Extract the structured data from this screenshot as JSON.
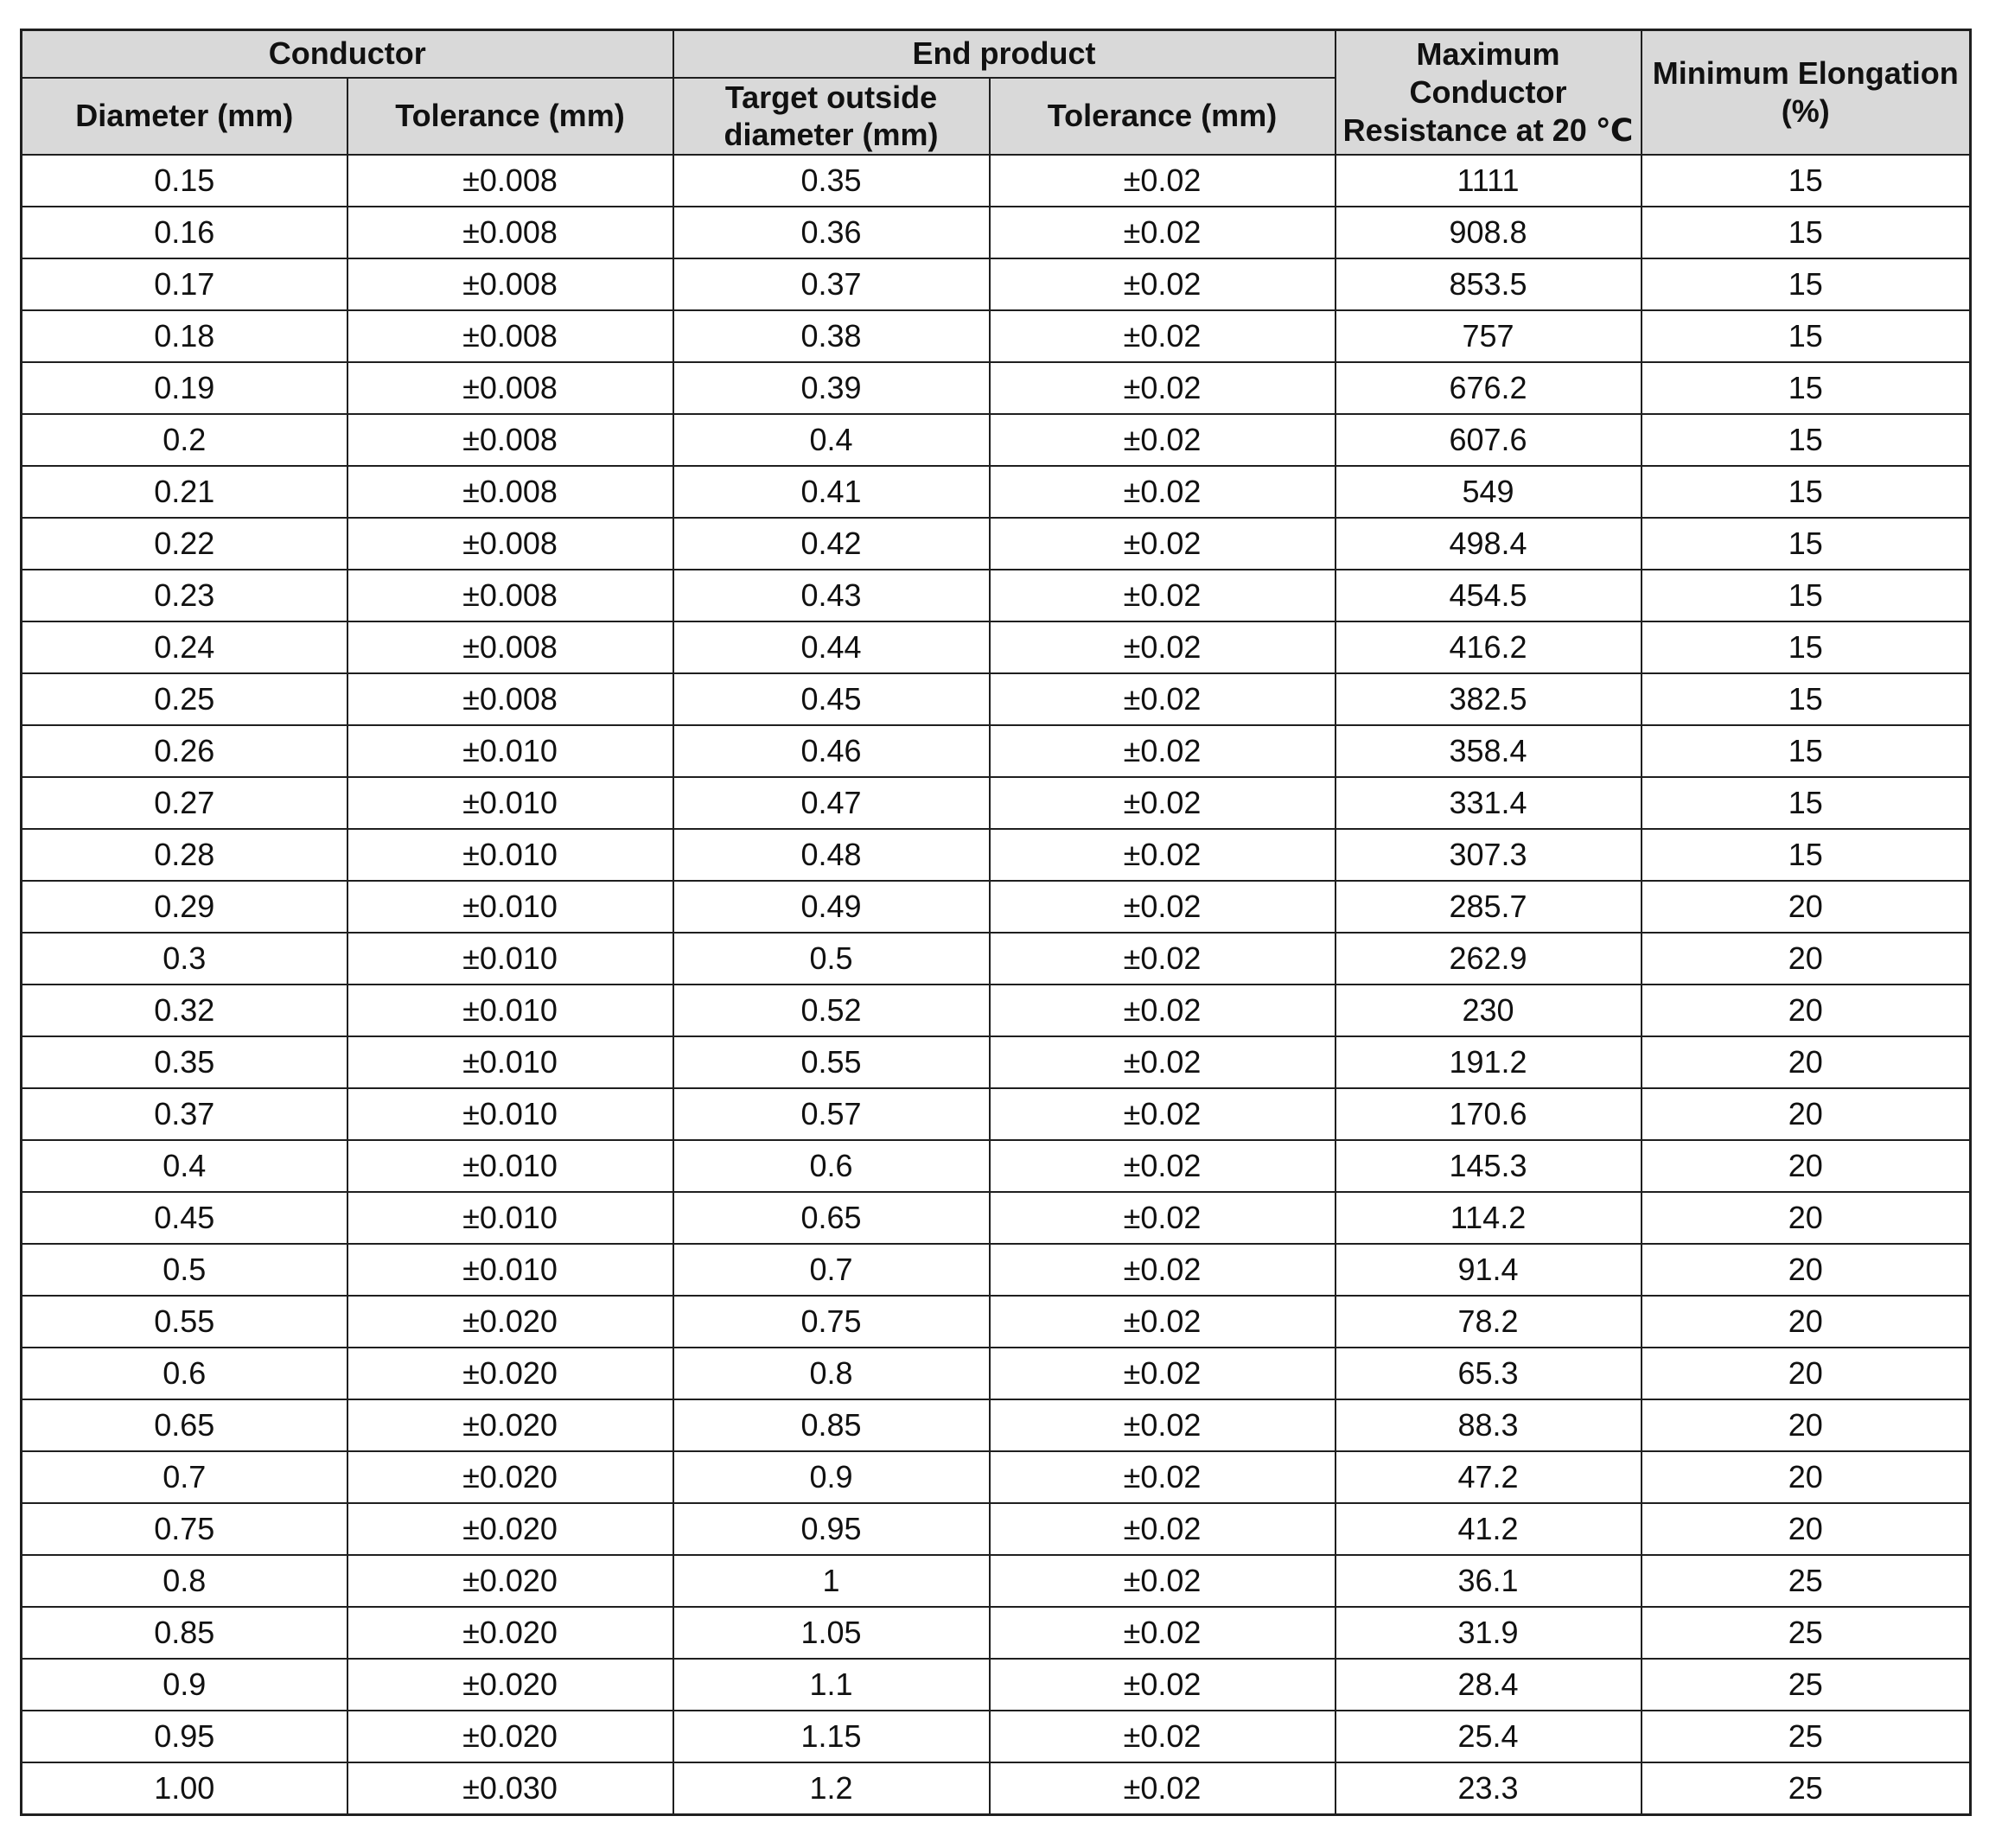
{
  "colors": {
    "header_bg": "#d9d9d9",
    "border": "#1f1f1f",
    "text": "#111111",
    "page_bg": "#ffffff"
  },
  "table": {
    "header": {
      "conductor_group": "Conductor",
      "end_product_group": "End product",
      "max_resistance": "Maximum Conductor Resistance at 20 ℃",
      "min_elongation": "Minimum Elongation (%)",
      "sub": {
        "diameter": "Diameter (mm)",
        "conductor_tolerance": "Tolerance (mm)",
        "target_outside_diameter": "Target outside diameter (mm)",
        "end_product_tolerance": "Tolerance (mm)"
      }
    },
    "rows": [
      [
        "0.15",
        "±0.008",
        "0.35",
        "±0.02",
        "1111",
        "15"
      ],
      [
        "0.16",
        "±0.008",
        "0.36",
        "±0.02",
        "908.8",
        "15"
      ],
      [
        "0.17",
        "±0.008",
        "0.37",
        "±0.02",
        "853.5",
        "15"
      ],
      [
        "0.18",
        "±0.008",
        "0.38",
        "±0.02",
        "757",
        "15"
      ],
      [
        "0.19",
        "±0.008",
        "0.39",
        "±0.02",
        "676.2",
        "15"
      ],
      [
        "0.2",
        "±0.008",
        "0.4",
        "±0.02",
        "607.6",
        "15"
      ],
      [
        "0.21",
        "±0.008",
        "0.41",
        "±0.02",
        "549",
        "15"
      ],
      [
        "0.22",
        "±0.008",
        "0.42",
        "±0.02",
        "498.4",
        "15"
      ],
      [
        "0.23",
        "±0.008",
        "0.43",
        "±0.02",
        "454.5",
        "15"
      ],
      [
        "0.24",
        "±0.008",
        "0.44",
        "±0.02",
        "416.2",
        "15"
      ],
      [
        "0.25",
        "±0.008",
        "0.45",
        "±0.02",
        "382.5",
        "15"
      ],
      [
        "0.26",
        "±0.010",
        "0.46",
        "±0.02",
        "358.4",
        "15"
      ],
      [
        "0.27",
        "±0.010",
        "0.47",
        "±0.02",
        "331.4",
        "15"
      ],
      [
        "0.28",
        "±0.010",
        "0.48",
        "±0.02",
        "307.3",
        "15"
      ],
      [
        "0.29",
        "±0.010",
        "0.49",
        "±0.02",
        "285.7",
        "20"
      ],
      [
        "0.3",
        "±0.010",
        "0.5",
        "±0.02",
        "262.9",
        "20"
      ],
      [
        "0.32",
        "±0.010",
        "0.52",
        "±0.02",
        "230",
        "20"
      ],
      [
        "0.35",
        "±0.010",
        "0.55",
        "±0.02",
        "191.2",
        "20"
      ],
      [
        "0.37",
        "±0.010",
        "0.57",
        "±0.02",
        "170.6",
        "20"
      ],
      [
        "0.4",
        "±0.010",
        "0.6",
        "±0.02",
        "145.3",
        "20"
      ],
      [
        "0.45",
        "±0.010",
        "0.65",
        "±0.02",
        "114.2",
        "20"
      ],
      [
        "0.5",
        "±0.010",
        "0.7",
        "±0.02",
        "91.4",
        "20"
      ],
      [
        "0.55",
        "±0.020",
        "0.75",
        "±0.02",
        "78.2",
        "20"
      ],
      [
        "0.6",
        "±0.020",
        "0.8",
        "±0.02",
        "65.3",
        "20"
      ],
      [
        "0.65",
        "±0.020",
        "0.85",
        "±0.02",
        "88.3",
        "20"
      ],
      [
        "0.7",
        "±0.020",
        "0.9",
        "±0.02",
        "47.2",
        "20"
      ],
      [
        "0.75",
        "±0.020",
        "0.95",
        "±0.02",
        "41.2",
        "20"
      ],
      [
        "0.8",
        "±0.020",
        "1",
        "±0.02",
        "36.1",
        "25"
      ],
      [
        "0.85",
        "±0.020",
        "1.05",
        "±0.02",
        "31.9",
        "25"
      ],
      [
        "0.9",
        "±0.020",
        "1.1",
        "±0.02",
        "28.4",
        "25"
      ],
      [
        "0.95",
        "±0.020",
        "1.15",
        "±0.02",
        "25.4",
        "25"
      ],
      [
        "1.00",
        "±0.030",
        "1.2",
        "±0.02",
        "23.3",
        "25"
      ]
    ]
  }
}
